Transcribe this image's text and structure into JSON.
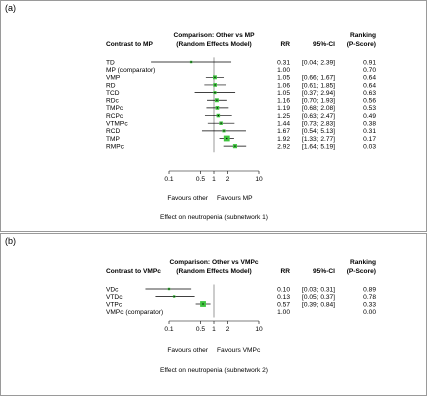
{
  "chart_data": [
    {
      "type": "forest",
      "panel_label": "(a)",
      "col_contrast": "Contrast to MP",
      "col_comparison": "Comparison: Other vs MP",
      "col_model": "(Random Effects Model)",
      "col_rr": "RR",
      "col_ci": "95%-CI",
      "col_ranking": "Ranking",
      "col_pscore": "(P-Score)",
      "axis": {
        "scale": "log",
        "ticks": [
          0.1,
          0.5,
          1,
          2,
          10
        ],
        "tick_labels": [
          "0.1",
          "0.5",
          "1",
          "2",
          "10"
        ],
        "range": [
          0.1,
          10
        ]
      },
      "favours_left": "Favours other",
      "favours_right": "Favours MP",
      "caption": "Effect on neutropenia (subnetwork 1)",
      "rows": [
        {
          "label": "TD",
          "rr": 0.31,
          "lo": 0.04,
          "hi": 2.39,
          "rr_text": "0.31",
          "ci_text": "[0.04; 2.39]",
          "pscore": "0.91",
          "weight": 0.2
        },
        {
          "label": "MP (comparator)",
          "rr": null,
          "lo": null,
          "hi": null,
          "rr_text": "1.00",
          "ci_text": "",
          "pscore": "0.70",
          "weight": 0
        },
        {
          "label": "VMP",
          "rr": 1.05,
          "lo": 0.66,
          "hi": 1.67,
          "rr_text": "1.05",
          "ci_text": "[0.66; 1.67]",
          "pscore": "0.64",
          "weight": 0.55
        },
        {
          "label": "RD",
          "rr": 1.06,
          "lo": 0.61,
          "hi": 1.85,
          "rr_text": "1.06",
          "ci_text": "[0.61; 1.85]",
          "pscore": "0.64",
          "weight": 0.5
        },
        {
          "label": "TCD",
          "rr": 1.05,
          "lo": 0.37,
          "hi": 2.94,
          "rr_text": "1.05",
          "ci_text": "[0.37; 2.94]",
          "pscore": "0.63",
          "weight": 0.35
        },
        {
          "label": "RDc",
          "rr": 1.16,
          "lo": 0.7,
          "hi": 1.93,
          "rr_text": "1.16",
          "ci_text": "[0.70; 1.93]",
          "pscore": "0.56",
          "weight": 0.55
        },
        {
          "label": "TMPc",
          "rr": 1.19,
          "lo": 0.68,
          "hi": 2.08,
          "rr_text": "1.19",
          "ci_text": "[0.68; 2.08]",
          "pscore": "0.53",
          "weight": 0.5
        },
        {
          "label": "RCPc",
          "rr": 1.25,
          "lo": 0.63,
          "hi": 2.47,
          "rr_text": "1.25",
          "ci_text": "[0.63; 2.47]",
          "pscore": "0.49",
          "weight": 0.45
        },
        {
          "label": "VTMPc",
          "rr": 1.44,
          "lo": 0.73,
          "hi": 2.83,
          "rr_text": "1.44",
          "ci_text": "[0.73; 2.83]",
          "pscore": "0.38",
          "weight": 0.45
        },
        {
          "label": "RCD",
          "rr": 1.67,
          "lo": 0.54,
          "hi": 5.13,
          "rr_text": "1.67",
          "ci_text": "[0.54; 5.13]",
          "pscore": "0.31",
          "weight": 0.35
        },
        {
          "label": "TMP",
          "rr": 1.92,
          "lo": 1.33,
          "hi": 2.77,
          "rr_text": "1.92",
          "ci_text": "[1.33; 2.77]",
          "pscore": "0.17",
          "weight": 1.0
        },
        {
          "label": "RMPc",
          "rr": 2.92,
          "lo": 1.64,
          "hi": 5.19,
          "rr_text": "2.92",
          "ci_text": "[1.64; 5.19]",
          "pscore": "0.03",
          "weight": 0.6
        }
      ]
    },
    {
      "type": "forest",
      "panel_label": "(b)",
      "col_contrast": "Contrast to VMPc",
      "col_comparison": "Comparison: Other vs VMPc",
      "col_model": "(Random Effects Model)",
      "col_rr": "RR",
      "col_ci": "95%-CI",
      "col_ranking": "Ranking",
      "col_pscore": "(P-Score)",
      "axis": {
        "scale": "log",
        "ticks": [
          0.1,
          0.5,
          1,
          2,
          10
        ],
        "tick_labels": [
          "0.1",
          "0.5",
          "1",
          "2",
          "10"
        ],
        "range": [
          0.1,
          10
        ]
      },
      "favours_left": "Favours other",
      "favours_right": "Favours VMPc",
      "caption": "Effect on neutropenia (subnetwork 2)",
      "rows": [
        {
          "label": "VDc",
          "rr": 0.1,
          "lo": 0.03,
          "hi": 0.31,
          "rr_text": "0.10",
          "ci_text": "[0.03; 0.31]",
          "pscore": "0.89",
          "weight": 0.2
        },
        {
          "label": "VTDc",
          "rr": 0.13,
          "lo": 0.05,
          "hi": 0.37,
          "rr_text": "0.13",
          "ci_text": "[0.05; 0.37]",
          "pscore": "0.78",
          "weight": 0.2
        },
        {
          "label": "VTPc",
          "rr": 0.57,
          "lo": 0.39,
          "hi": 0.84,
          "rr_text": "0.57",
          "ci_text": "[0.39; 0.84]",
          "pscore": "0.33",
          "weight": 1.0
        },
        {
          "label": "VMPc (comparator)",
          "rr": null,
          "lo": null,
          "hi": null,
          "rr_text": "1.00",
          "ci_text": "",
          "pscore": "0.00",
          "weight": 0
        }
      ]
    }
  ]
}
